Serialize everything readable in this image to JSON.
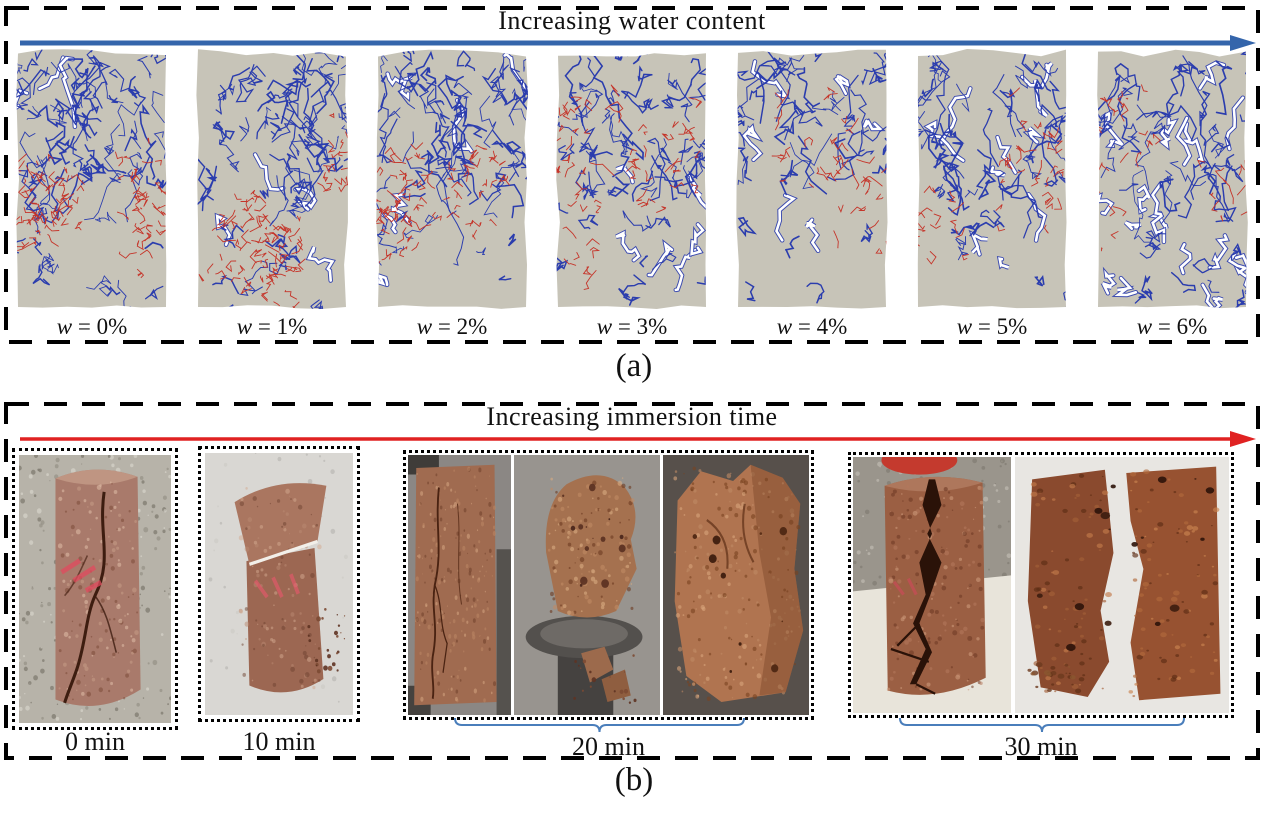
{
  "figure": {
    "panel_a": {
      "label": "(a)",
      "title": "Increasing water content",
      "arrow_color": "#3465ab",
      "image_bg": "#c7c4b8",
      "crack_colors": {
        "blue": "#2b3dae",
        "red": "#c5352a",
        "open": "#ffffff"
      },
      "specimens": [
        {
          "symbol": "w",
          "suffix": "= 0%",
          "cracks": {
            "blue": 75,
            "red": 120,
            "white": 3,
            "redBias": 0.68
          }
        },
        {
          "symbol": "w",
          "suffix": "= 1%",
          "cracks": {
            "blue": 68,
            "red": 95,
            "white": 4,
            "redBias": 0.64
          }
        },
        {
          "symbol": "w",
          "suffix": "= 2%",
          "cracks": {
            "blue": 64,
            "red": 80,
            "white": 6,
            "redBias": 0.6
          }
        },
        {
          "symbol": "w",
          "suffix": "= 3%",
          "cracks": {
            "blue": 60,
            "red": 65,
            "white": 6,
            "redBias": 0.55
          }
        },
        {
          "symbol": "w",
          "suffix": "= 4%",
          "cracks": {
            "blue": 48,
            "red": 40,
            "white": 6,
            "redBias": 0.5
          }
        },
        {
          "symbol": "w",
          "suffix": "= 5%",
          "cracks": {
            "blue": 54,
            "red": 45,
            "white": 10,
            "redBias": 0.48
          }
        },
        {
          "symbol": "w",
          "suffix": "= 6%",
          "cracks": {
            "blue": 50,
            "red": 40,
            "white": 18,
            "redBias": 0.5
          }
        }
      ]
    },
    "panel_b": {
      "label": "(b)",
      "title": "Increasing immersion time",
      "arrow_color": "#e02222",
      "brace_color": "#4a7ebb",
      "groups": [
        {
          "label": "0 min",
          "photos": [
            {
              "type": "cylinder-cracked-diagonal",
              "bg": "#b7b3a9",
              "body": "#a97a6b"
            }
          ]
        },
        {
          "label": "10 min",
          "photos": [
            {
              "type": "cylinder-sheared",
              "bg": "#d9d7d3",
              "body": "#9c6752"
            }
          ]
        },
        {
          "label": "20 min",
          "photos": [
            {
              "type": "cylinder-in-press",
              "bg": "#8b8784",
              "body": "#a06b50"
            },
            {
              "type": "crumbled-on-platen",
              "bg": "#98948f",
              "body": "#a5714f"
            },
            {
              "type": "broken-chunk",
              "bg": "#57504b",
              "body": "#b07450"
            }
          ]
        },
        {
          "label": "30 min",
          "photos": [
            {
              "type": "cylinder-split-vertical",
              "bg": "#9a958c",
              "body": "#9b5f43"
            },
            {
              "type": "split-halves",
              "bg": "#e8e6e2",
              "body": "#8a4a2e"
            }
          ]
        }
      ]
    }
  }
}
